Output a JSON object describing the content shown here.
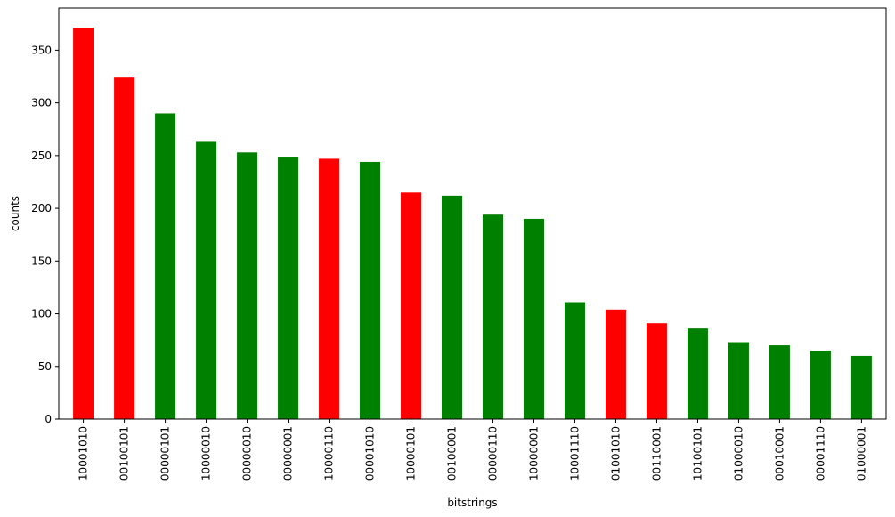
{
  "chart_data": {
    "type": "bar",
    "title": "",
    "xlabel": "bitstrings",
    "ylabel": "counts",
    "ylim": [
      0,
      390
    ],
    "yticks": [
      0,
      50,
      100,
      150,
      200,
      250,
      300,
      350
    ],
    "grid": false,
    "legend": "none",
    "colors": {
      "red": "#ff0000",
      "green": "#008000"
    },
    "categories": [
      "10001010",
      "00100101",
      "00000101",
      "10000010",
      "00000010",
      "00000001",
      "10000110",
      "00001010",
      "10000101",
      "00100001",
      "00000110",
      "10000001",
      "10001110",
      "01001010",
      "00110001",
      "10100101",
      "01000010",
      "00010001",
      "00001110",
      "01000001"
    ],
    "values": [
      371,
      324,
      290,
      263,
      253,
      249,
      247,
      244,
      215,
      212,
      194,
      190,
      111,
      104,
      91,
      86,
      73,
      70,
      65,
      60
    ],
    "bar_colors": [
      "red",
      "red",
      "green",
      "green",
      "green",
      "green",
      "red",
      "green",
      "red",
      "green",
      "green",
      "green",
      "green",
      "red",
      "red",
      "green",
      "green",
      "green",
      "green",
      "green"
    ]
  }
}
